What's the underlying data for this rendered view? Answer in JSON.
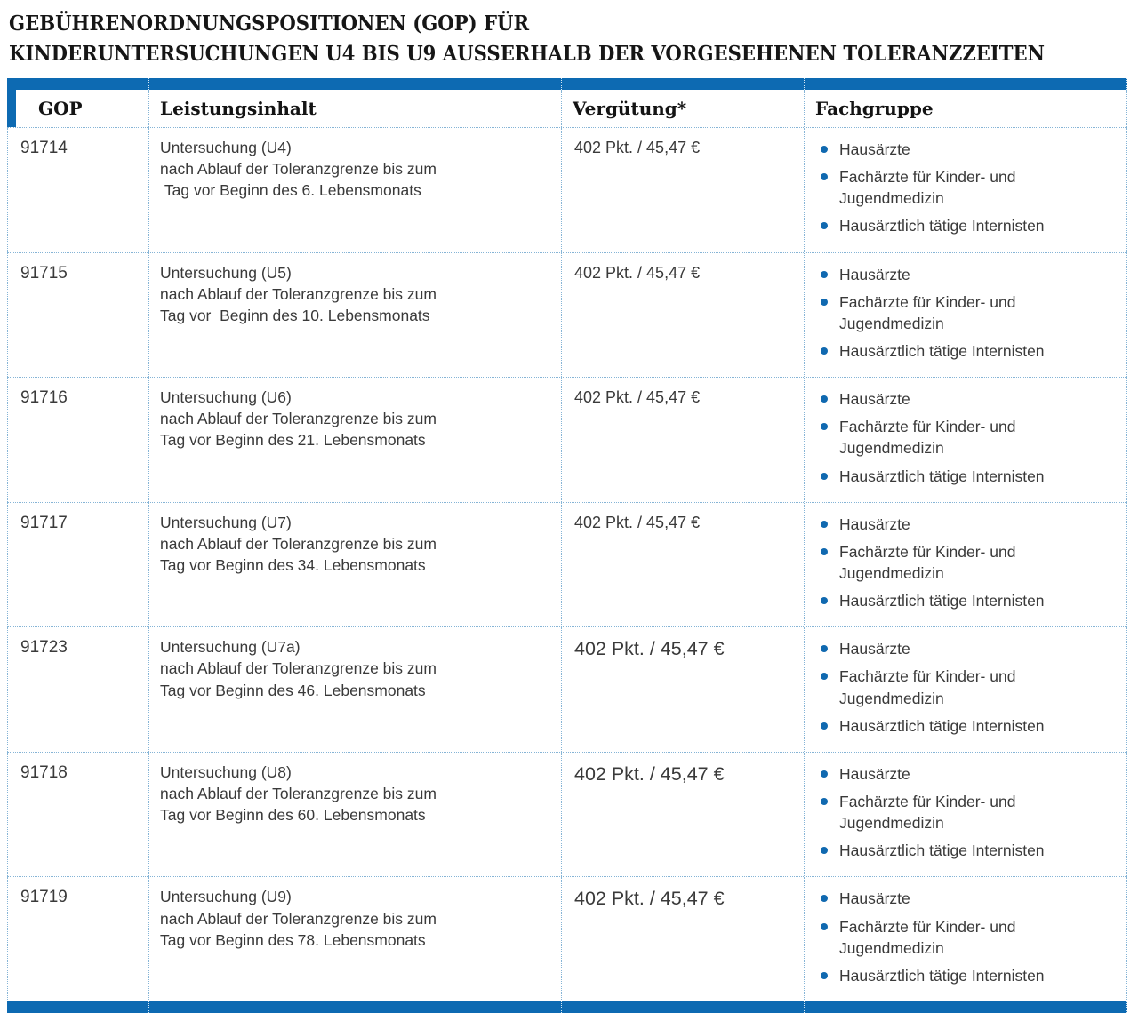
{
  "title": {
    "line1": "GEBÜHRENORDNUNGSPOSITIONEN (GOP) FÜR",
    "line2": "KINDERUNTERSUCHUNGEN U4 BIS U9 AUSSERHALB DER VORGESEHENEN TOLERANZZEITEN"
  },
  "colors": {
    "accent_blue": "#0d6ab2",
    "dotted_border": "#85b4d6",
    "bullet_blue": "#1069b0",
    "body_text": "#3a3a3a"
  },
  "table": {
    "headers": [
      "GOP",
      "Leistungsinhalt",
      "Vergütung*",
      "Fachgruppe"
    ],
    "rows": [
      {
        "gop": "91714",
        "service": "Untersuchung (U4)\nnach Ablauf der Toleranzgrenze bis zum\n Tag vor Beginn des 6. Lebensmonats",
        "fee": "402 Pkt. / 45,47 €",
        "fachgruppe": [
          "Hausärzte",
          "Fachärzte für Kinder- und\nJugendmedizin",
          "Hausärztlich tätige Internisten"
        ]
      },
      {
        "gop": "91715",
        "service": "Untersuchung (U5)\nnach Ablauf der Toleranzgrenze bis zum\nTag vor  Beginn des 10. Lebensmonats",
        "fee": "402 Pkt. / 45,47 €",
        "fachgruppe": [
          "Hausärzte",
          "Fachärzte für Kinder- und\nJugendmedizin",
          "Hausärztlich tätige Internisten"
        ]
      },
      {
        "gop": "91716",
        "service": "Untersuchung (U6)\nnach Ablauf der Toleranzgrenze bis zum\nTag vor Beginn des 21. Lebensmonats",
        "fee": "402 Pkt. / 45,47 €",
        "fachgruppe": [
          "Hausärzte",
          "Fachärzte für Kinder- und\nJugendmedizin",
          "Hausärztlich tätige Internisten"
        ]
      },
      {
        "gop": "91717",
        "service": "Untersuchung (U7)\nnach Ablauf der Toleranzgrenze bis zum\nTag vor Beginn des 34. Lebensmonats",
        "fee": "402 Pkt. / 45,47 €",
        "fachgruppe": [
          "Hausärzte",
          "Fachärzte für Kinder- und\nJugendmedizin",
          "Hausärztlich tätige Internisten"
        ]
      },
      {
        "gop": "91723",
        "service": "Untersuchung (U7a)\nnach Ablauf der Toleranzgrenze bis zum\nTag vor Beginn des 46. Lebensmonats",
        "fee": "402 Pkt. / 45,47 €",
        "fachgruppe": [
          "Hausärzte",
          "Fachärzte für Kinder- und\nJugendmedizin",
          "Hausärztlich tätige Internisten"
        ]
      },
      {
        "gop": "91718",
        "service": "Untersuchung (U8)\nnach Ablauf der Toleranzgrenze bis zum\nTag vor Beginn des 60. Lebensmonats",
        "fee": "402 Pkt. / 45,47 €",
        "fachgruppe": [
          "Hausärzte",
          "Fachärzte für Kinder- und\nJugendmedizin",
          "Hausärztlich tätige Internisten"
        ]
      },
      {
        "gop": "91719",
        "service": "Untersuchung (U9)\nnach Ablauf der Toleranzgrenze bis zum\nTag vor Beginn des 78. Lebensmonats",
        "fee": "402 Pkt. / 45,47 €",
        "fachgruppe": [
          "Hausärzte",
          "Fachärzte für Kinder- und\nJugendmedizin",
          "Hausärztlich tätige Internisten"
        ]
      }
    ]
  }
}
